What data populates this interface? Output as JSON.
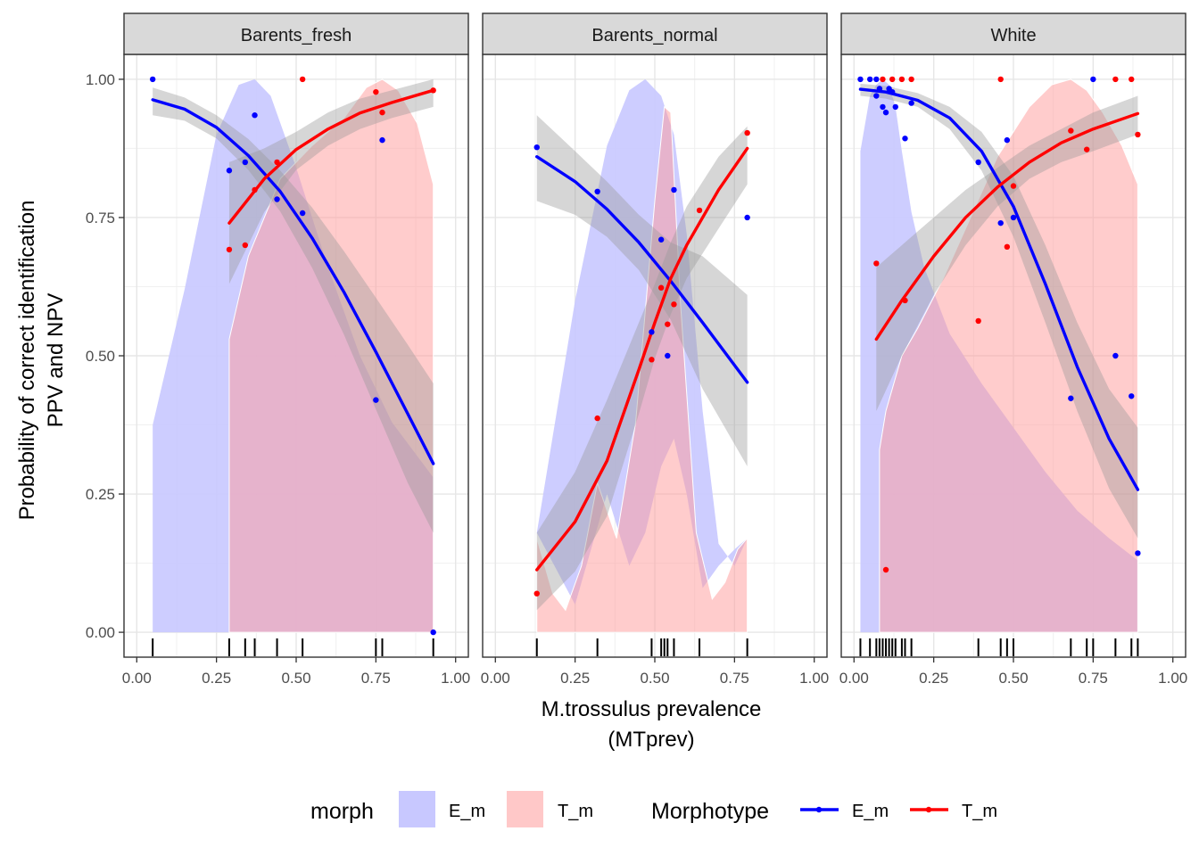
{
  "chart_data": {
    "type": "line",
    "facets": [
      {
        "title": "Barents_fresh",
        "points": {
          "E_m": [
            [
              0.05,
              1.0
            ],
            [
              0.29,
              0.835
            ],
            [
              0.34,
              0.85
            ],
            [
              0.37,
              0.935
            ],
            [
              0.44,
              0.783
            ],
            [
              0.52,
              0.758
            ],
            [
              0.75,
              0.42
            ],
            [
              0.77,
              0.89
            ],
            [
              0.93,
              0.0
            ]
          ],
          "T_m": [
            [
              0.29,
              0.692
            ],
            [
              0.34,
              0.7
            ],
            [
              0.37,
              0.8
            ],
            [
              0.44,
              0.85
            ],
            [
              0.52,
              1.0
            ],
            [
              0.75,
              0.977
            ],
            [
              0.77,
              0.94
            ],
            [
              0.93,
              0.98
            ]
          ]
        },
        "fit": {
          "E_m": {
            "x": [
              0.05,
              0.15,
              0.25,
              0.35,
              0.45,
              0.55,
              0.65,
              0.75,
              0.85,
              0.93
            ],
            "y": [
              0.963,
              0.946,
              0.913,
              0.862,
              0.797,
              0.713,
              0.615,
              0.507,
              0.395,
              0.305
            ],
            "lo": [
              0.935,
              0.925,
              0.893,
              0.836,
              0.761,
              0.659,
              0.538,
              0.403,
              0.27,
              0.18
            ],
            "hi": [
              0.985,
              0.967,
              0.935,
              0.892,
              0.835,
              0.768,
              0.689,
              0.605,
              0.52,
              0.45
            ]
          },
          "T_m": {
            "x": [
              0.29,
              0.4,
              0.5,
              0.6,
              0.7,
              0.8,
              0.93
            ],
            "y": [
              0.74,
              0.82,
              0.873,
              0.91,
              0.939,
              0.958,
              0.98
            ],
            "lo": [
              0.63,
              0.76,
              0.836,
              0.88,
              0.91,
              0.93,
              0.95
            ],
            "hi": [
              0.85,
              0.875,
              0.905,
              0.94,
              0.965,
              0.98,
              1.0
            ]
          }
        },
        "density": {
          "E_m": {
            "x": [
              0.05,
              0.15,
              0.25,
              0.32,
              0.37,
              0.42,
              0.5,
              0.6,
              0.7,
              0.8,
              0.93
            ],
            "y": [
              0.375,
              0.62,
              0.9,
              0.99,
              1.0,
              0.97,
              0.84,
              0.66,
              0.5,
              0.38,
              0.28
            ]
          },
          "T_m": {
            "x": [
              0.29,
              0.35,
              0.45,
              0.55,
              0.65,
              0.72,
              0.77,
              0.82,
              0.88,
              0.93
            ],
            "y": [
              0.53,
              0.68,
              0.82,
              0.88,
              0.93,
              0.985,
              1.0,
              0.98,
              0.92,
              0.81
            ]
          }
        },
        "rug": [
          0.05,
          0.29,
          0.34,
          0.37,
          0.44,
          0.52,
          0.75,
          0.77,
          0.93
        ]
      },
      {
        "title": "Barents_normal",
        "points": {
          "E_m": [
            [
              0.13,
              0.877
            ],
            [
              0.32,
              0.797
            ],
            [
              0.49,
              0.543
            ],
            [
              0.52,
              0.71
            ],
            [
              0.54,
              0.5
            ],
            [
              0.56,
              0.8
            ],
            [
              0.79,
              0.75
            ]
          ],
          "T_m": [
            [
              0.13,
              0.07
            ],
            [
              0.32,
              0.387
            ],
            [
              0.49,
              0.493
            ],
            [
              0.52,
              0.623
            ],
            [
              0.54,
              0.557
            ],
            [
              0.56,
              0.593
            ],
            [
              0.64,
              0.763
            ],
            [
              0.79,
              0.903
            ]
          ]
        },
        "fit": {
          "E_m": {
            "x": [
              0.13,
              0.25,
              0.35,
              0.45,
              0.55,
              0.65,
              0.79
            ],
            "y": [
              0.86,
              0.815,
              0.765,
              0.705,
              0.635,
              0.56,
              0.452
            ],
            "lo": [
              0.78,
              0.755,
              0.715,
              0.655,
              0.565,
              0.44,
              0.3
            ],
            "hi": [
              0.935,
              0.87,
              0.815,
              0.755,
              0.705,
              0.68,
              0.61
            ]
          },
          "T_m": {
            "x": [
              0.13,
              0.25,
              0.35,
              0.45,
              0.5,
              0.55,
              0.6,
              0.7,
              0.79
            ],
            "y": [
              0.113,
              0.2,
              0.31,
              0.475,
              0.56,
              0.64,
              0.7,
              0.8,
              0.875
            ],
            "lo": [
              0.04,
              0.11,
              0.21,
              0.395,
              0.495,
              0.575,
              0.64,
              0.73,
              0.81
            ],
            "hi": [
              0.18,
              0.29,
              0.42,
              0.56,
              0.63,
              0.705,
              0.77,
              0.86,
              0.915
            ]
          }
        },
        "density": {
          "E_m": {
            "x": [
              0.13,
              0.25,
              0.35,
              0.42,
              0.47,
              0.52,
              0.56,
              0.6,
              0.65,
              0.7,
              0.75,
              0.79
            ],
            "y": [
              0.18,
              0.6,
              0.88,
              0.98,
              1.0,
              0.97,
              0.9,
              0.72,
              0.4,
              0.16,
              0.12,
              0.17
            ],
            "lower": [
              0.18,
              0.05,
              0.25,
              0.12,
              0.18,
              0.3,
              0.35,
              0.25,
              0.08,
              0.12,
              0.15,
              0.17
            ]
          },
          "T_m": {
            "x": [
              0.13,
              0.18,
              0.22,
              0.27,
              0.32,
              0.38,
              0.44,
              0.5,
              0.53,
              0.55,
              0.58,
              0.63,
              0.68,
              0.72,
              0.76,
              0.79
            ],
            "y": [
              0.17,
              0.07,
              0.04,
              0.12,
              0.27,
              0.17,
              0.38,
              0.78,
              0.95,
              0.94,
              0.6,
              0.18,
              0.06,
              0.09,
              0.15,
              0.17
            ]
          }
        },
        "rug": [
          0.13,
          0.32,
          0.49,
          0.52,
          0.53,
          0.54,
          0.56,
          0.64,
          0.79
        ]
      },
      {
        "title": "White",
        "points": {
          "E_m": [
            [
              0.02,
              1.0
            ],
            [
              0.05,
              1.0
            ],
            [
              0.07,
              1.0
            ],
            [
              0.07,
              0.97
            ],
            [
              0.08,
              0.983
            ],
            [
              0.09,
              0.95
            ],
            [
              0.1,
              0.94
            ],
            [
              0.11,
              0.983
            ],
            [
              0.12,
              0.977
            ],
            [
              0.13,
              0.95
            ],
            [
              0.16,
              0.893
            ],
            [
              0.18,
              0.957
            ],
            [
              0.39,
              0.85
            ],
            [
              0.46,
              0.74
            ],
            [
              0.48,
              0.89
            ],
            [
              0.5,
              0.75
            ],
            [
              0.68,
              0.423
            ],
            [
              0.75,
              1.0
            ],
            [
              0.82,
              0.5
            ],
            [
              0.87,
              0.427
            ],
            [
              0.89,
              0.143
            ]
          ],
          "T_m": [
            [
              0.07,
              0.667
            ],
            [
              0.09,
              1.0
            ],
            [
              0.1,
              0.113
            ],
            [
              0.12,
              1.0
            ],
            [
              0.15,
              1.0
            ],
            [
              0.16,
              0.6
            ],
            [
              0.18,
              1.0
            ],
            [
              0.39,
              0.563
            ],
            [
              0.46,
              1.0
            ],
            [
              0.48,
              0.697
            ],
            [
              0.5,
              0.807
            ],
            [
              0.68,
              0.907
            ],
            [
              0.73,
              0.873
            ],
            [
              0.82,
              1.0
            ],
            [
              0.87,
              1.0
            ],
            [
              0.89,
              0.9
            ]
          ]
        },
        "fit": {
          "E_m": {
            "x": [
              0.02,
              0.1,
              0.2,
              0.3,
              0.4,
              0.5,
              0.6,
              0.7,
              0.8,
              0.89
            ],
            "y": [
              0.982,
              0.977,
              0.962,
              0.93,
              0.87,
              0.77,
              0.63,
              0.48,
              0.35,
              0.258
            ],
            "lo": [
              0.97,
              0.965,
              0.95,
              0.91,
              0.835,
              0.715,
              0.56,
              0.4,
              0.26,
              0.17
            ],
            "hi": [
              0.992,
              0.988,
              0.975,
              0.95,
              0.905,
              0.825,
              0.7,
              0.56,
              0.44,
              0.37
            ]
          },
          "T_m": {
            "x": [
              0.07,
              0.15,
              0.25,
              0.35,
              0.45,
              0.55,
              0.65,
              0.75,
              0.89
            ],
            "y": [
              0.53,
              0.6,
              0.68,
              0.75,
              0.805,
              0.85,
              0.885,
              0.91,
              0.938
            ],
            "lo": [
              0.4,
              0.5,
              0.61,
              0.7,
              0.77,
              0.82,
              0.85,
              0.87,
              0.9
            ],
            "hi": [
              0.66,
              0.7,
              0.75,
              0.8,
              0.84,
              0.88,
              0.91,
              0.94,
              0.97
            ]
          }
        },
        "density": {
          "E_m": {
            "x": [
              0.02,
              0.05,
              0.07,
              0.09,
              0.11,
              0.13,
              0.15,
              0.18,
              0.22,
              0.3,
              0.4,
              0.5,
              0.6,
              0.7,
              0.8,
              0.89
            ],
            "y": [
              0.87,
              0.97,
              0.99,
              1.0,
              0.99,
              0.95,
              0.87,
              0.76,
              0.66,
              0.54,
              0.45,
              0.37,
              0.29,
              0.22,
              0.17,
              0.13
            ]
          },
          "T_m": {
            "x": [
              0.08,
              0.1,
              0.15,
              0.2,
              0.28,
              0.35,
              0.45,
              0.55,
              0.62,
              0.68,
              0.73,
              0.78,
              0.84,
              0.89
            ],
            "y": [
              0.33,
              0.4,
              0.5,
              0.55,
              0.64,
              0.73,
              0.86,
              0.95,
              0.99,
              1.0,
              0.98,
              0.94,
              0.88,
              0.81
            ]
          }
        },
        "rug": [
          0.02,
          0.05,
          0.07,
          0.08,
          0.09,
          0.1,
          0.11,
          0.12,
          0.13,
          0.15,
          0.16,
          0.18,
          0.39,
          0.46,
          0.48,
          0.5,
          0.68,
          0.73,
          0.75,
          0.82,
          0.87,
          0.89
        ]
      }
    ],
    "xlim": [
      0.0,
      1.0
    ],
    "ylim": [
      0.0,
      1.0
    ],
    "x_ticks": [
      "0.00",
      "0.25",
      "0.50",
      "0.75",
      "1.00"
    ],
    "y_ticks": [
      "0.00",
      "0.25",
      "0.50",
      "0.75",
      "1.00"
    ],
    "xlabel": "M.trossulus prevalence",
    "xlabel2": "(MTprev)",
    "ylabel": "Probability of correct identification",
    "ylabel2": "PPV and NPV",
    "grid": true,
    "legend_position": "bottom",
    "colors": {
      "E_m_line": "#0000ff",
      "T_m_line": "#ff0000",
      "E_m_fill": "#c8c8ff",
      "T_m_fill": "#ffc8c8",
      "ci_fill": "#b3b3b3"
    },
    "legends": [
      {
        "title": "morph",
        "items": [
          "E_m",
          "T_m"
        ]
      },
      {
        "title": "Morphotype",
        "items": [
          "E_m",
          "T_m"
        ]
      }
    ]
  }
}
